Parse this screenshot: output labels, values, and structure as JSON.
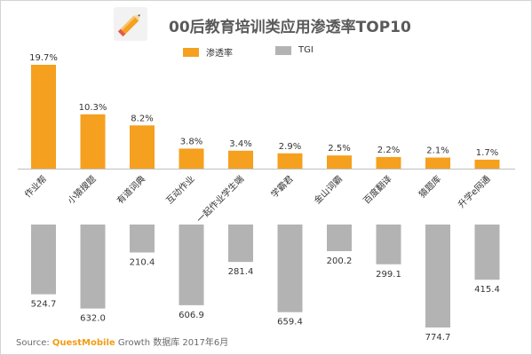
{
  "title": "00后教育培训类应用渗透率TOP10",
  "icon": "pencil-icon",
  "colors": {
    "penetration": "#F5A01F",
    "tgi": "#B3B3B3",
    "axis": "#BFBFBF",
    "text": "#333333"
  },
  "legend": {
    "penetration": "渗透率",
    "tgi": "TGI"
  },
  "chart_data": {
    "type": "bar",
    "categories": [
      "作业帮",
      "小猿搜题",
      "有道词典",
      "互动作业",
      "一起作业学生端",
      "学霸君",
      "金山词霸",
      "百度翻译",
      "猿题库",
      "升学e网通"
    ],
    "series": [
      {
        "name": "渗透率",
        "values": [
          19.7,
          10.3,
          8.2,
          3.8,
          3.4,
          2.9,
          2.5,
          2.2,
          2.1,
          1.7
        ],
        "labels": [
          "19.7%",
          "10.3%",
          "8.2%",
          "3.8%",
          "3.4%",
          "2.9%",
          "2.5%",
          "2.2%",
          "2.1%",
          "1.7%"
        ]
      },
      {
        "name": "TGI",
        "values": [
          524.7,
          632.0,
          210.4,
          606.9,
          281.4,
          659.4,
          200.2,
          299.1,
          774.7,
          415.4
        ],
        "labels": [
          "524.7",
          "632.0",
          "210.4",
          "606.9",
          "281.4",
          "659.4",
          "200.2",
          "299.1",
          "774.7",
          "415.4"
        ]
      }
    ],
    "legend_position": "top-center",
    "grid": false
  },
  "footer": {
    "label": "Source:",
    "brand": "QuestMobile",
    "rest": "Growth 数据库 2017年6月"
  }
}
